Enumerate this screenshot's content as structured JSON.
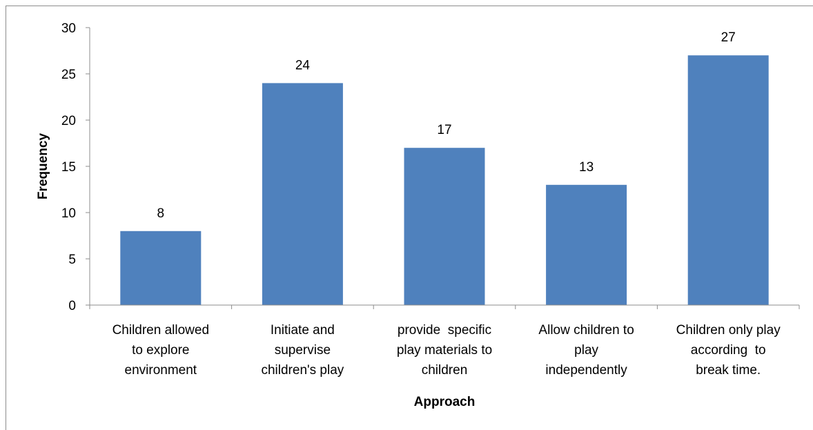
{
  "chart_data": {
    "type": "bar",
    "title": "",
    "xlabel": "Approach",
    "ylabel": "Frequency",
    "ylim": [
      0,
      30
    ],
    "yticks": [
      0,
      5,
      10,
      15,
      20,
      25,
      30
    ],
    "grid": false,
    "legend": "none",
    "bar_color": "#4F81BD",
    "categories": [
      [
        "Children allowed",
        "to explore",
        "environment"
      ],
      [
        "Initiate and",
        "supervise",
        "children's play"
      ],
      [
        "provide  specific",
        "play materials to",
        "children"
      ],
      [
        "Allow children to",
        "play",
        "independently"
      ],
      [
        "Children only play",
        "according  to",
        "break time."
      ]
    ],
    "values": [
      8,
      24,
      17,
      13,
      27
    ]
  }
}
